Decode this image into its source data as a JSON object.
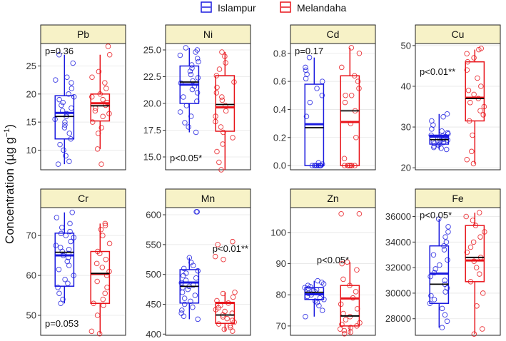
{
  "chart_data": {
    "type": "boxplot",
    "ylabel_main": "Concentration (",
    "ylabel_unit": "µg g",
    "ylabel_exp": "−1",
    "ylabel_close": ")",
    "legend": [
      {
        "name": "Islampur",
        "color": "#1a1adf"
      },
      {
        "name": "Melandaha",
        "color": "#e8141a"
      }
    ],
    "groups": [
      "Islampur",
      "Melandaha"
    ],
    "panels": [
      {
        "title": "Pb",
        "ylim": [
          6.5,
          29
        ],
        "ticks": [
          10,
          15,
          20,
          25
        ],
        "tick_labels": [
          "10",
          "15",
          "20",
          "25"
        ],
        "p_label": "p=0.36",
        "p_pos": "top-left",
        "boxes": [
          {
            "min": 7.5,
            "q1": 12.0,
            "median": 16.0,
            "q3": 19.7,
            "max": 27.0
          },
          {
            "min": 10.2,
            "q1": 15.2,
            "median": 17.9,
            "q3": 20.0,
            "max": 27.0
          }
        ],
        "points": [
          [
            7.5,
            8.0,
            9.0,
            10.0,
            11.0,
            12.0,
            13.0,
            14.0,
            14.5,
            15.0,
            15.5,
            16.0,
            16.5,
            17.0,
            17.5,
            18.0,
            18.5,
            19.0,
            19.5,
            20.0,
            21.0,
            22.0,
            22.5,
            23.0,
            25.5,
            27.0
          ],
          [
            7.5,
            10.2,
            13.0,
            14.0,
            15.0,
            16.0,
            16.5,
            17.0,
            17.5,
            18.0,
            18.5,
            19.0,
            19.5,
            20.0,
            21.0,
            22.0,
            23.0,
            24.0,
            27.0,
            28.5
          ]
        ]
      },
      {
        "title": "Ni",
        "ylim": [
          13.8,
          25.6
        ],
        "ticks": [
          15.0,
          17.5,
          20.0,
          22.5,
          25.0
        ],
        "tick_labels": [
          "15.0",
          "17.5",
          "20.0",
          "22.5",
          "25.0"
        ],
        "p_label": "p<0.05*",
        "p_pos": "bottom-left",
        "boxes": [
          {
            "min": 17.3,
            "q1": 20.0,
            "median": 22.0,
            "q3": 23.5,
            "max": 25.2
          },
          {
            "min": 13.8,
            "q1": 17.4,
            "median": 19.9,
            "q3": 22.6,
            "max": 24.8
          }
        ],
        "points": [
          [
            17.3,
            17.8,
            18.2,
            18.8,
            19.2,
            19.8,
            20.2,
            20.6,
            21.0,
            21.3,
            21.6,
            21.9,
            22.1,
            22.4,
            22.7,
            23.0,
            23.3,
            23.6,
            23.9,
            24.2,
            24.5,
            24.8,
            25.0,
            25.2
          ],
          [
            13.8,
            14.5,
            15.5,
            16.2,
            16.8,
            17.3,
            17.8,
            18.3,
            18.8,
            19.3,
            19.8,
            20.3,
            20.6,
            21.0,
            21.5,
            22.0,
            22.6,
            23.2,
            23.8,
            24.4,
            24.8
          ]
        ]
      },
      {
        "title": "Cd",
        "ylim": [
          -0.03,
          0.87
        ],
        "ticks": [
          0.0,
          0.2,
          0.4,
          0.6,
          0.8
        ],
        "tick_labels": [
          "0.0",
          "0.2",
          "0.4",
          "0.6",
          "0.8"
        ],
        "p_label": "p=0.17",
        "p_pos": "top-left",
        "boxes": [
          {
            "min": 0.0,
            "q1": 0.0,
            "median": 0.27,
            "q3": 0.58,
            "max": 0.77
          },
          {
            "min": 0.0,
            "q1": 0.0,
            "median": 0.39,
            "q3": 0.64,
            "max": 0.84
          }
        ],
        "points": [
          [
            0.0,
            0.0,
            0.0,
            0.0,
            0.0,
            0.0,
            0.0,
            0.0,
            0.01,
            0.02,
            0.35,
            0.45,
            0.5,
            0.55,
            0.6,
            0.62,
            0.65,
            0.68,
            0.7,
            0.77
          ],
          [
            0.0,
            0.0,
            0.0,
            0.0,
            0.0,
            0.0,
            0.0,
            0.0,
            0.05,
            0.2,
            0.3,
            0.39,
            0.45,
            0.5,
            0.5,
            0.55,
            0.6,
            0.64,
            0.7,
            0.8,
            0.84
          ]
        ]
      },
      {
        "title": "Cu",
        "ylim": [
          19.5,
          50.5
        ],
        "ticks": [
          20,
          30,
          40,
          50
        ],
        "tick_labels": [
          "20",
          "30",
          "40",
          "50"
        ],
        "p_label": "p<0.01**",
        "p_pos": "mid-left",
        "boxes": [
          {
            "min": 24.5,
            "q1": 25.8,
            "median": 26.9,
            "q3": 28.0,
            "max": 33.2
          },
          {
            "min": 21.0,
            "q1": 31.5,
            "median": 37.0,
            "q3": 46.0,
            "max": 49.0
          }
        ],
        "points": [
          [
            24.5,
            24.8,
            25.0,
            25.3,
            25.6,
            25.8,
            26.0,
            26.2,
            26.4,
            26.6,
            26.8,
            27.0,
            27.2,
            27.4,
            27.6,
            27.8,
            28.0,
            28.3,
            28.6,
            29.0,
            29.5,
            30.5,
            31.5,
            32.5,
            33.2
          ],
          [
            21.0,
            22.0,
            24.0,
            28.0,
            31.5,
            33.0,
            34.0,
            35.0,
            36.0,
            37.0,
            38.0,
            39.0,
            40.0,
            42.0,
            44.0,
            46.0,
            47.0,
            48.0,
            49.0,
            49.3
          ]
        ]
      },
      {
        "title": "Cr",
        "ylim": [
          45,
          77
        ],
        "ticks": [
          50,
          60,
          70
        ],
        "tick_labels": [
          "50",
          "60",
          "70"
        ],
        "p_label": "p=0.053",
        "p_pos": "bottom-left",
        "boxes": [
          {
            "min": 53.0,
            "q1": 57.3,
            "median": 65.8,
            "q3": 70.6,
            "max": 75.8
          },
          {
            "min": 45.4,
            "q1": 53.0,
            "median": 60.5,
            "q3": 66.0,
            "max": 73.0
          }
        ],
        "points": [
          [
            53.0,
            54.0,
            55.5,
            57.0,
            58.0,
            59.0,
            60.0,
            61.5,
            62.5,
            63.5,
            64.5,
            65.0,
            65.5,
            66.0,
            66.5,
            67.0,
            67.5,
            68.5,
            69.5,
            70.0,
            70.5,
            71.0,
            72.0,
            73.0,
            74.5,
            75.8
          ],
          [
            45.4,
            46.0,
            50.0,
            52.5,
            53.0,
            54.0,
            55.5,
            57.0,
            58.5,
            60.0,
            61.0,
            62.0,
            63.0,
            64.0,
            65.5,
            66.0,
            68.0,
            70.0,
            71.5,
            72.5,
            73.0
          ]
        ]
      },
      {
        "title": "Mn",
        "ylim": [
          398,
          612
        ],
        "ticks": [
          400,
          450,
          500,
          550,
          600
        ],
        "tick_labels": [
          "400",
          "450",
          "500",
          "550",
          "600"
        ],
        "p_label": "p<0.01**",
        "p_pos": "top-right",
        "boxes": [
          {
            "min": 425,
            "q1": 452,
            "median": 480,
            "q3": 508,
            "max": 528
          },
          {
            "min": 405,
            "q1": 418,
            "median": 432,
            "q3": 453,
            "max": 470
          }
        ],
        "points": [
          [
            425,
            430,
            435,
            440,
            445,
            450,
            455,
            460,
            465,
            470,
            475,
            478,
            480,
            482,
            486,
            490,
            494,
            498,
            502,
            506,
            510,
            515,
            520,
            528,
            605,
            605
          ],
          [
            405,
            408,
            411,
            414,
            417,
            420,
            423,
            426,
            429,
            432,
            435,
            438,
            441,
            444,
            448,
            452,
            456,
            462,
            468,
            470,
            525,
            530,
            550,
            555
          ]
        ]
      },
      {
        "title": "Zn",
        "ylim": [
          67,
          108
        ],
        "ticks": [
          70,
          80,
          90,
          100
        ],
        "tick_labels": [
          "70",
          "80",
          "90",
          "100"
        ],
        "p_label": "p<0.05*",
        "p_pos": "mid-center",
        "boxes": [
          {
            "min": 73.0,
            "q1": 78.5,
            "median": 80.8,
            "q3": 82.3,
            "max": 84.5
          },
          {
            "min": 67.5,
            "q1": 70.0,
            "median": 73.2,
            "q3": 83.0,
            "max": 90.5
          }
        ],
        "points": [
          [
            73.0,
            75.0,
            76.5,
            77.5,
            78.0,
            78.5,
            79.0,
            79.5,
            80.0,
            80.5,
            81.0,
            81.3,
            81.6,
            82.0,
            82.3,
            82.6,
            83.0,
            83.5,
            84.0,
            84.5
          ],
          [
            67.5,
            68.0,
            68.5,
            69.0,
            69.5,
            70.0,
            70.5,
            71.0,
            72.0,
            73.0,
            74.0,
            75.5,
            77.0,
            79.0,
            81.0,
            83.0,
            85.0,
            88.0,
            90.0,
            90.5,
            106.0,
            106.0
          ]
        ]
      },
      {
        "title": "Fe",
        "ylim": [
          26700,
          36700
        ],
        "ticks": [
          28000,
          30000,
          32000,
          34000,
          36000
        ],
        "tick_labels": [
          "28000",
          "30000",
          "32000",
          "34000",
          "36000"
        ],
        "p_label": "p<0.05*",
        "p_pos": "top-left",
        "boxes": [
          {
            "min": 27300,
            "q1": 29200,
            "median": 30700,
            "q3": 33700,
            "max": 35800
          },
          {
            "min": 26800,
            "q1": 30900,
            "median": 32800,
            "q3": 35300,
            "max": 36300
          }
        ],
        "points": [
          [
            27300,
            27800,
            28300,
            28800,
            29200,
            29500,
            29800,
            30100,
            30400,
            30700,
            31000,
            31300,
            31600,
            31900,
            32200,
            32600,
            33000,
            33400,
            33700,
            34000,
            34400,
            34800,
            35200,
            35800
          ],
          [
            26800,
            27200,
            29000,
            30000,
            30900,
            31500,
            32000,
            32500,
            32800,
            33200,
            33600,
            34000,
            34400,
            34800,
            35300,
            35700,
            36000,
            36300
          ]
        ]
      }
    ]
  }
}
